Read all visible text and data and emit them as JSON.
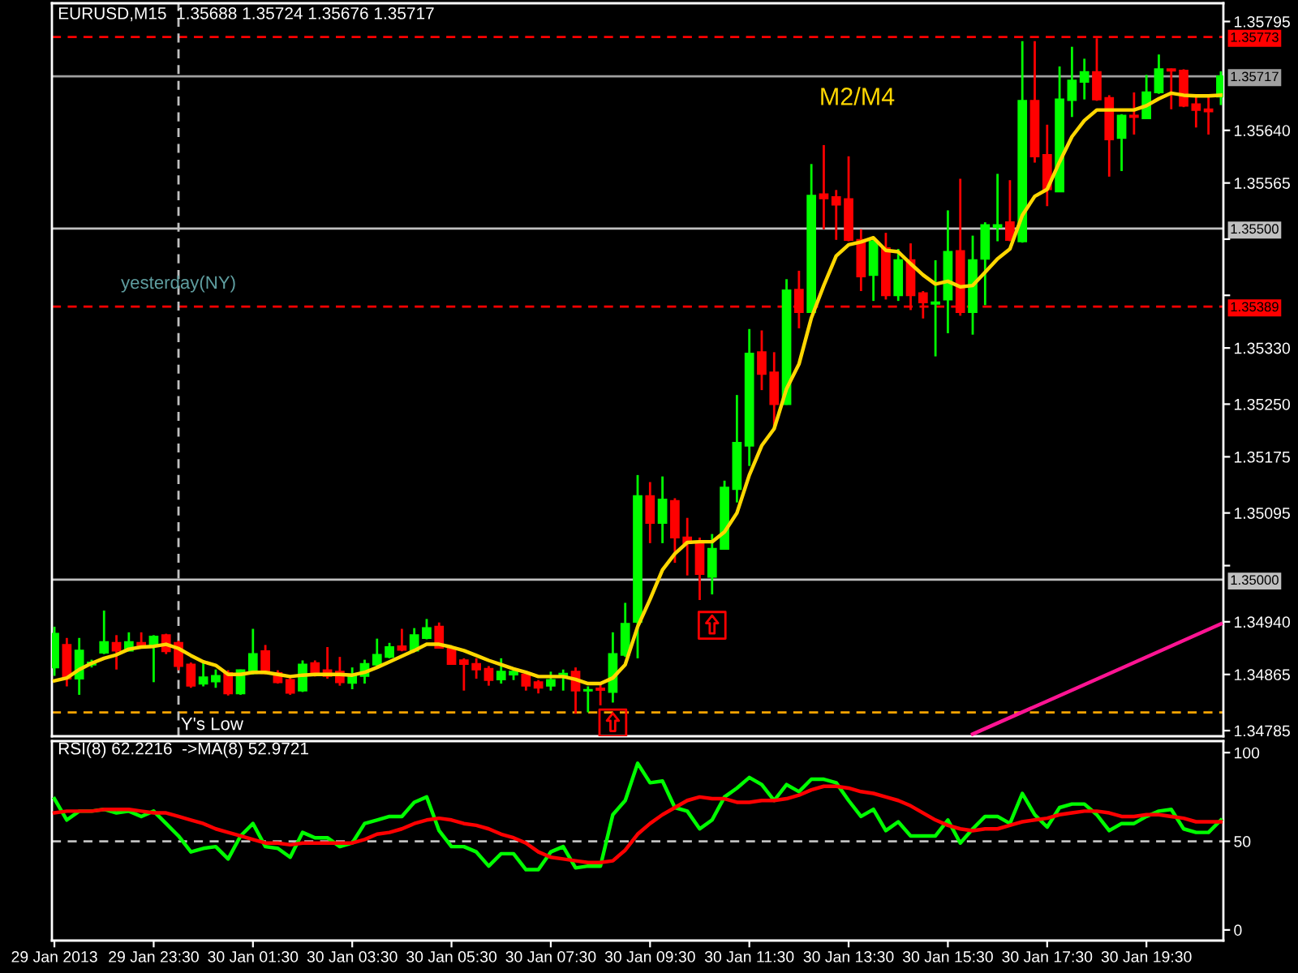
{
  "chart_data": [
    {
      "type": "candlestick",
      "title": "EURUSD,M15  1.35688 1.35724 1.35676 1.35717",
      "x": [
        "2013-01-29T21:30",
        "2013-01-29T21:45",
        "2013-01-29T22:00",
        "2013-01-29T22:15",
        "2013-01-29T22:30",
        "2013-01-29T22:45",
        "2013-01-29T23:00",
        "2013-01-29T23:15",
        "2013-01-29T23:30",
        "2013-01-29T23:45",
        "2013-01-30T00:00",
        "2013-01-30T00:15",
        "2013-01-30T00:30",
        "2013-01-30T00:45",
        "2013-01-30T01:00",
        "2013-01-30T01:15",
        "2013-01-30T01:30",
        "2013-01-30T01:45",
        "2013-01-30T02:00",
        "2013-01-30T02:15",
        "2013-01-30T02:30",
        "2013-01-30T02:45",
        "2013-01-30T03:00",
        "2013-01-30T03:15",
        "2013-01-30T03:30",
        "2013-01-30T03:45",
        "2013-01-30T04:00",
        "2013-01-30T04:15",
        "2013-01-30T04:30",
        "2013-01-30T04:45",
        "2013-01-30T05:00",
        "2013-01-30T05:15",
        "2013-01-30T05:30",
        "2013-01-30T05:45",
        "2013-01-30T06:00",
        "2013-01-30T06:15",
        "2013-01-30T06:30",
        "2013-01-30T06:45",
        "2013-01-30T07:00",
        "2013-01-30T07:15",
        "2013-01-30T07:30",
        "2013-01-30T07:45",
        "2013-01-30T08:00",
        "2013-01-30T08:15",
        "2013-01-30T08:30",
        "2013-01-30T08:45",
        "2013-01-30T09:00",
        "2013-01-30T09:15",
        "2013-01-30T09:30",
        "2013-01-30T09:45",
        "2013-01-30T10:00",
        "2013-01-30T10:15",
        "2013-01-30T10:30",
        "2013-01-30T10:45",
        "2013-01-30T11:00",
        "2013-01-30T11:15",
        "2013-01-30T11:30",
        "2013-01-30T11:45",
        "2013-01-30T12:00",
        "2013-01-30T12:15",
        "2013-01-30T12:30",
        "2013-01-30T12:45",
        "2013-01-30T13:00",
        "2013-01-30T13:15",
        "2013-01-30T13:30",
        "2013-01-30T13:45",
        "2013-01-30T14:00",
        "2013-01-30T14:15",
        "2013-01-30T14:30",
        "2013-01-30T14:45",
        "2013-01-30T15:00",
        "2013-01-30T15:15",
        "2013-01-30T15:30",
        "2013-01-30T15:45",
        "2013-01-30T16:00",
        "2013-01-30T16:15",
        "2013-01-30T16:30",
        "2013-01-30T16:45",
        "2013-01-30T17:00",
        "2013-01-30T17:15",
        "2013-01-30T17:30",
        "2013-01-30T17:45",
        "2013-01-30T18:00",
        "2013-01-30T18:15",
        "2013-01-30T18:30",
        "2013-01-30T18:45",
        "2013-01-30T19:00",
        "2013-01-30T19:15",
        "2013-01-30T19:30",
        "2013-01-30T19:45",
        "2013-01-30T20:00",
        "2013-01-30T20:15",
        "2013-01-30T20:30",
        "2013-01-30T20:45",
        "2013-01-30T21:00"
      ],
      "ohlc": [
        [
          1.34875,
          1.34933,
          1.34863,
          1.34923
        ],
        [
          1.34907,
          1.34917,
          1.34848,
          1.34859
        ],
        [
          1.34859,
          1.34917,
          1.34836,
          1.34899
        ],
        [
          1.34879,
          1.34886,
          1.34875,
          1.34882
        ],
        [
          1.34896,
          1.34956,
          1.34894,
          1.34911
        ],
        [
          1.3491,
          1.34921,
          1.34872,
          1.34899
        ],
        [
          1.34899,
          1.34925,
          1.34898,
          1.34911
        ],
        [
          1.3491,
          1.34925,
          1.34902,
          1.34904
        ],
        [
          1.34906,
          1.34921,
          1.34854,
          1.34919
        ],
        [
          1.34921,
          1.34923,
          1.34894,
          1.34898
        ],
        [
          1.3491,
          1.34913,
          1.34871,
          1.34877
        ],
        [
          1.34879,
          1.34882,
          1.34846,
          1.34849
        ],
        [
          1.34852,
          1.34882,
          1.34848,
          1.34861
        ],
        [
          1.34855,
          1.34872,
          1.34846,
          1.34863
        ],
        [
          1.34867,
          1.34871,
          1.34835,
          1.34838
        ],
        [
          1.34838,
          1.34872,
          1.34836,
          1.34871
        ],
        [
          1.34867,
          1.3493,
          1.34865,
          1.34894
        ],
        [
          1.34898,
          1.34907,
          1.34865,
          1.34867
        ],
        [
          1.34867,
          1.34871,
          1.34852,
          1.34854
        ],
        [
          1.34857,
          1.34863,
          1.34836,
          1.34839
        ],
        [
          1.34842,
          1.34885,
          1.3484,
          1.34879
        ],
        [
          1.34881,
          1.34885,
          1.34862,
          1.34866
        ],
        [
          1.34871,
          1.34904,
          1.34859,
          1.34863
        ],
        [
          1.34869,
          1.3489,
          1.34849,
          1.34854
        ],
        [
          1.34853,
          1.34875,
          1.34844,
          1.34865
        ],
        [
          1.34863,
          1.34886,
          1.34852,
          1.3488
        ],
        [
          1.34879,
          1.34916,
          1.34875,
          1.34893
        ],
        [
          1.3489,
          1.3491,
          1.34888,
          1.34904
        ],
        [
          1.34905,
          1.3493,
          1.34898,
          1.349
        ],
        [
          1.34899,
          1.34931,
          1.34898,
          1.34921
        ],
        [
          1.34917,
          1.34944,
          1.34915,
          1.34931
        ],
        [
          1.34933,
          1.34939,
          1.34902,
          1.34903
        ],
        [
          1.34902,
          1.34906,
          1.34879,
          1.3488
        ],
        [
          1.34885,
          1.34888,
          1.34842,
          1.3488
        ],
        [
          1.3488,
          1.34888,
          1.34859,
          1.34872
        ],
        [
          1.34873,
          1.34877,
          1.34849,
          1.34857
        ],
        [
          1.34858,
          1.34888,
          1.34852,
          1.34869
        ],
        [
          1.34865,
          1.34873,
          1.34857,
          1.34869
        ],
        [
          1.34865,
          1.34869,
          1.34842,
          1.34849
        ],
        [
          1.34854,
          1.34857,
          1.34838,
          1.34846
        ],
        [
          1.34849,
          1.34869,
          1.34842,
          1.34857
        ],
        [
          1.34862,
          1.34872,
          1.34842,
          1.34866
        ],
        [
          1.34869,
          1.34875,
          1.34809,
          1.34842
        ],
        [
          1.34842,
          1.34848,
          1.34811,
          1.34843
        ],
        [
          1.34845,
          1.34852,
          1.34821,
          1.34843
        ],
        [
          1.3484,
          1.34925,
          1.34825,
          1.34894
        ],
        [
          1.34893,
          1.34967,
          1.3489,
          1.34937
        ],
        [
          1.3494,
          1.35149,
          1.34888,
          1.35119
        ],
        [
          1.35119,
          1.35139,
          1.35052,
          1.35081
        ],
        [
          1.35081,
          1.35147,
          1.35052,
          1.35114
        ],
        [
          1.35112,
          1.35116,
          1.35024,
          1.3506
        ],
        [
          1.3506,
          1.35088,
          1.35006,
          1.35052
        ],
        [
          1.35052,
          1.3506,
          1.34971,
          1.35008
        ],
        [
          1.35004,
          1.35065,
          1.34979,
          1.35044
        ],
        [
          1.35044,
          1.35141,
          1.35043,
          1.35131
        ],
        [
          1.35129,
          1.35263,
          1.3511,
          1.35195
        ],
        [
          1.35191,
          1.35357,
          1.35162,
          1.35322
        ],
        [
          1.35324,
          1.35355,
          1.3527,
          1.35293
        ],
        [
          1.35295,
          1.35324,
          1.35219,
          1.3525
        ],
        [
          1.3525,
          1.35428,
          1.35249,
          1.35412
        ],
        [
          1.35413,
          1.3544,
          1.35358,
          1.35381
        ],
        [
          1.35381,
          1.35592,
          1.3538,
          1.35547
        ],
        [
          1.35549,
          1.35619,
          1.35499,
          1.35543
        ],
        [
          1.35545,
          1.35555,
          1.35484,
          1.35534
        ],
        [
          1.35542,
          1.35603,
          1.35482,
          1.35484
        ],
        [
          1.35484,
          1.35499,
          1.35411,
          1.35432
        ],
        [
          1.35434,
          1.35488,
          1.35397,
          1.35482
        ],
        [
          1.35472,
          1.35494,
          1.35399,
          1.35405
        ],
        [
          1.35405,
          1.35471,
          1.35397,
          1.35455
        ],
        [
          1.35455,
          1.35479,
          1.35384,
          1.35405
        ],
        [
          1.35408,
          1.35411,
          1.35372,
          1.35395
        ],
        [
          1.35393,
          1.35455,
          1.35318,
          1.35395
        ],
        [
          1.35399,
          1.35526,
          1.35351,
          1.35467
        ],
        [
          1.35468,
          1.35571,
          1.35376,
          1.35381
        ],
        [
          1.35381,
          1.3549,
          1.35349,
          1.35455
        ],
        [
          1.35457,
          1.35509,
          1.35391,
          1.35505
        ],
        [
          1.35502,
          1.35578,
          1.35482,
          1.35505
        ],
        [
          1.35509,
          1.35569,
          1.35482,
          1.35484
        ],
        [
          1.35482,
          1.35767,
          1.3548,
          1.35682
        ],
        [
          1.35682,
          1.35767,
          1.35594,
          1.35603
        ],
        [
          1.35605,
          1.35648,
          1.35532,
          1.35556
        ],
        [
          1.35553,
          1.35731,
          1.35552,
          1.35684
        ],
        [
          1.35683,
          1.35759,
          1.35659,
          1.35711
        ],
        [
          1.35709,
          1.35742,
          1.35684,
          1.35723
        ],
        [
          1.35723,
          1.35771,
          1.35682,
          1.35684
        ],
        [
          1.35686,
          1.3569,
          1.35574,
          1.35627
        ],
        [
          1.35629,
          1.35663,
          1.35582,
          1.35661
        ],
        [
          1.35661,
          1.35694,
          1.35634,
          1.35659
        ],
        [
          1.35657,
          1.35719,
          1.35656,
          1.35694
        ],
        [
          1.35694,
          1.35748,
          1.35692,
          1.35727
        ],
        [
          1.35727,
          1.35728,
          1.3567,
          1.35725
        ],
        [
          1.35725,
          1.35727,
          1.35673,
          1.35675
        ],
        [
          1.35677,
          1.35688,
          1.35644,
          1.35669
        ],
        [
          1.3567,
          1.3569,
          1.35634,
          1.35667
        ],
        [
          1.35688,
          1.35724,
          1.35676,
          1.35717
        ]
      ],
      "colors": [
        "#00ff00",
        "#ff0000",
        "#00ff00",
        "#00ff00",
        "#00ff00",
        "#ff0000",
        "#00ff00",
        "#ff0000",
        "#00ff00",
        "#ff0000",
        "#ff0000",
        "#ff0000",
        "#00ff00",
        "#00ff00",
        "#ff0000",
        "#00ff00",
        "#00ff00",
        "#ff0000",
        "#ff0000",
        "#ff0000",
        "#00ff00",
        "#ff0000",
        "#ff0000",
        "#ff0000",
        "#00ff00",
        "#00ff00",
        "#00ff00",
        "#00ff00",
        "#ff0000",
        "#00ff00",
        "#00ff00",
        "#ff0000",
        "#ff0000",
        "#ff0000",
        "#ff0000",
        "#ff0000",
        "#00ff00",
        "#00ff00",
        "#ff0000",
        "#ff0000",
        "#00ff00",
        "#00ff00",
        "#ff0000",
        "#00ff00",
        "#ff0000",
        "#00ff00",
        "#00ff00",
        "#00ff00",
        "#ff0000",
        "#00ff00",
        "#ff0000",
        "#ff0000",
        "#ff0000",
        "#00ff00",
        "#00ff00",
        "#00ff00",
        "#00ff00",
        "#ff0000",
        "#ff0000",
        "#00ff00",
        "#ff0000",
        "#00ff00",
        "#ff0000",
        "#ff0000",
        "#ff0000",
        "#ff0000",
        "#00ff00",
        "#ff0000",
        "#00ff00",
        "#ff0000",
        "#ff0000",
        "#00ff00",
        "#00ff00",
        "#ff0000",
        "#00ff00",
        "#00ff00",
        "#00ff00",
        "#ff0000",
        "#00ff00",
        "#ff0000",
        "#ff0000",
        "#00ff00",
        "#00ff00",
        "#00ff00",
        "#ff0000",
        "#ff0000",
        "#00ff00",
        "#ff0000",
        "#00ff00",
        "#00ff00",
        "#ff0000",
        "#ff0000",
        "#ff0000",
        "#ff0000",
        "#00ff00"
      ],
      "series": [
        {
          "type": "line",
          "name": "M2/M4",
          "color": "#ffd700",
          "values": [
            1.34856,
            1.3486,
            1.34872,
            1.34881,
            1.34888,
            1.34893,
            1.34901,
            1.34904,
            1.34905,
            1.34908,
            1.34902,
            1.34892,
            1.34883,
            1.34878,
            1.34865,
            1.34865,
            1.34868,
            1.34868,
            1.34865,
            1.34862,
            1.34864,
            1.34865,
            1.34865,
            1.34865,
            1.34864,
            1.34868,
            1.34875,
            1.34883,
            1.34891,
            1.34899,
            1.34908,
            1.34908,
            1.34904,
            1.34899,
            1.34892,
            1.34885,
            1.34879,
            1.34873,
            1.34868,
            1.34862,
            1.34862,
            1.34862,
            1.34858,
            1.34852,
            1.34852,
            1.3486,
            1.34879,
            1.34933,
            1.34972,
            1.35014,
            1.35037,
            1.35053,
            1.35054,
            1.35054,
            1.35068,
            1.35095,
            1.35149,
            1.35191,
            1.35215,
            1.35272,
            1.35307,
            1.35373,
            1.35419,
            1.35461,
            1.35477,
            1.35481,
            1.35487,
            1.35469,
            1.35467,
            1.3545,
            1.35434,
            1.35421,
            1.35425,
            1.35417,
            1.35419,
            1.35438,
            1.35457,
            1.35471,
            1.35519,
            1.35546,
            1.35556,
            1.35595,
            1.35631,
            1.35654,
            1.35669,
            1.35669,
            1.35669,
            1.35669,
            1.35675,
            1.35685,
            1.35693,
            1.3569,
            1.35689,
            1.35689,
            1.3569
          ]
        },
        {
          "type": "line",
          "color": "#ff1493",
          "x": [
            "2013-01-30T16:00",
            "2013-01-30T17:30",
            "2013-01-30T19:00",
            "2013-01-30T21:00"
          ],
          "values": [
            1.3478,
            1.34827,
            1.34874,
            1.34937
          ]
        },
        {
          "type": "scatter",
          "color": "#ff0000",
          "marker": "square",
          "x": [
            "2013-01-30T08:45",
            "2013-01-30T10:45"
          ],
          "values": [
            1.34796,
            1.34935
          ]
        }
      ],
      "xlim": [
        "2013-01-29T21:27",
        "2013-01-30T21:03"
      ],
      "ylim": [
        1.34777,
        1.35821
      ],
      "yticks": [
        1.35795,
        {
          "value": 1.3564,
          "label": "1.35640"
        },
        1.35565,
        {
          "value": 1.35485,
          "label": null
        },
        {
          "value": 1.35405,
          "label": null
        },
        {
          "value": 1.3533,
          "label": "1.35330"
        },
        {
          "value": 1.3525,
          "label": "1.35250"
        },
        1.35175,
        1.35095,
        {
          "value": 1.3502,
          "label": null
        },
        {
          "value": 1.3494,
          "label": "1.34940"
        },
        1.34865,
        1.34785
      ],
      "tick_labels": "y",
      "ref_lines": [
        {
          "axis": "y",
          "value": 1.35773,
          "label": "1.35773",
          "color": "#ff0000",
          "line_style": "dashed"
        },
        {
          "axis": "y",
          "value": 1.35717,
          "label": "1.35717",
          "color": "#a0a0a0",
          "line_style": "solid"
        },
        {
          "axis": "y",
          "value": 1.355,
          "label": "1.35500",
          "color": "#c0c0c0",
          "line_style": "solid"
        },
        {
          "axis": "y",
          "value": 1.35389,
          "label": "1.35389",
          "color": "#ff0000",
          "line_style": "dashed"
        },
        {
          "axis": "y",
          "value": 1.35,
          "label": "1.35000",
          "color": "#c0c0c0",
          "line_style": "solid"
        },
        {
          "axis": "y",
          "value": 1.34811,
          "color": "#ffa500",
          "line_style": "dashed"
        },
        {
          "axis": "x",
          "value": "2013-01-30T00:00",
          "label": "yesterday(NY)",
          "color": "#c0c0c0",
          "line_style": "dashed"
        }
      ],
      "annotations": [
        {
          "text": "Y's Low",
          "x": "2013-01-30T00:00",
          "y": 1.34811
        }
      ]
    },
    {
      "type": "line",
      "title": "RSI(8) 62.2216  ->MA(8) 52.9721",
      "x": [
        "2013-01-29T21:30",
        "2013-01-29T21:45",
        "2013-01-29T22:00",
        "2013-01-29T22:15",
        "2013-01-29T22:30",
        "2013-01-29T22:45",
        "2013-01-29T23:00",
        "2013-01-29T23:15",
        "2013-01-29T23:30",
        "2013-01-29T23:45",
        "2013-01-30T00:00",
        "2013-01-30T00:15",
        "2013-01-30T00:30",
        "2013-01-30T00:45",
        "2013-01-30T01:00",
        "2013-01-30T01:15",
        "2013-01-30T01:30",
        "2013-01-30T01:45",
        "2013-01-30T02:00",
        "2013-01-30T02:15",
        "2013-01-30T02:30",
        "2013-01-30T02:45",
        "2013-01-30T03:00",
        "2013-01-30T03:15",
        "2013-01-30T03:30",
        "2013-01-30T03:45",
        "2013-01-30T04:00",
        "2013-01-30T04:15",
        "2013-01-30T04:30",
        "2013-01-30T04:45",
        "2013-01-30T05:00",
        "2013-01-30T05:15",
        "2013-01-30T05:30",
        "2013-01-30T05:45",
        "2013-01-30T06:00",
        "2013-01-30T06:15",
        "2013-01-30T06:30",
        "2013-01-30T06:45",
        "2013-01-30T07:00",
        "2013-01-30T07:15",
        "2013-01-30T07:30",
        "2013-01-30T07:45",
        "2013-01-30T08:00",
        "2013-01-30T08:15",
        "2013-01-30T08:30",
        "2013-01-30T08:45",
        "2013-01-30T09:00",
        "2013-01-30T09:15",
        "2013-01-30T09:30",
        "2013-01-30T09:45",
        "2013-01-30T10:00",
        "2013-01-30T10:15",
        "2013-01-30T10:30",
        "2013-01-30T10:45",
        "2013-01-30T11:00",
        "2013-01-30T11:15",
        "2013-01-30T11:30",
        "2013-01-30T11:45",
        "2013-01-30T12:00",
        "2013-01-30T12:15",
        "2013-01-30T12:30",
        "2013-01-30T12:45",
        "2013-01-30T13:00",
        "2013-01-30T13:15",
        "2013-01-30T13:30",
        "2013-01-30T13:45",
        "2013-01-30T14:00",
        "2013-01-30T14:15",
        "2013-01-30T14:30",
        "2013-01-30T14:45",
        "2013-01-30T15:00",
        "2013-01-30T15:15",
        "2013-01-30T15:30",
        "2013-01-30T15:45",
        "2013-01-30T16:00",
        "2013-01-30T16:15",
        "2013-01-30T16:30",
        "2013-01-30T16:45",
        "2013-01-30T17:00",
        "2013-01-30T17:15",
        "2013-01-30T17:30",
        "2013-01-30T17:45",
        "2013-01-30T18:00",
        "2013-01-30T18:15",
        "2013-01-30T18:30",
        "2013-01-30T18:45",
        "2013-01-30T19:00",
        "2013-01-30T19:15",
        "2013-01-30T19:30",
        "2013-01-30T19:45",
        "2013-01-30T20:00",
        "2013-01-30T20:15",
        "2013-01-30T20:30",
        "2013-01-30T20:45",
        "2013-01-30T21:00"
      ],
      "series": [
        {
          "color": "#00ff00",
          "values": [
            74,
            62,
            67,
            67,
            68,
            66,
            67,
            64,
            67,
            60,
            53,
            44,
            46,
            47,
            40,
            53,
            60,
            47,
            46,
            41,
            55,
            52,
            52,
            47,
            49,
            60,
            62,
            64,
            64,
            72,
            75,
            56,
            47,
            47,
            44,
            36,
            43,
            43,
            34,
            34,
            44,
            47,
            35,
            36,
            36,
            65,
            73,
            94,
            83,
            84,
            69,
            67,
            57,
            62,
            75,
            80,
            86,
            82,
            73,
            82,
            78,
            85,
            85,
            83,
            73,
            64,
            68,
            56,
            61,
            53,
            53,
            53,
            62,
            49,
            57,
            64,
            64,
            60,
            77,
            65,
            58,
            69,
            71,
            71,
            65,
            56,
            60,
            60,
            64,
            67,
            68,
            57,
            55,
            55,
            62
          ]
        },
        {
          "color": "#ff0000",
          "values": [
            66,
            67,
            67,
            67,
            68,
            68,
            68,
            67,
            66,
            66,
            64,
            62,
            60,
            57,
            55,
            53,
            51,
            49,
            49,
            48,
            49,
            49,
            49,
            49,
            49,
            51,
            54,
            55,
            57,
            60,
            62,
            63,
            62,
            60,
            59,
            57,
            54,
            52,
            49,
            44,
            41,
            40,
            39,
            38,
            38,
            39,
            45,
            54,
            60,
            65,
            69,
            73,
            75,
            74,
            74,
            72,
            72,
            73,
            73,
            74,
            76,
            79,
            81,
            81,
            80,
            78,
            77,
            75,
            73,
            70,
            66,
            62,
            59,
            57,
            56,
            57,
            57,
            59,
            61,
            62,
            63,
            65,
            66,
            67,
            67,
            66,
            64,
            64,
            65,
            65,
            64,
            63,
            61,
            61,
            61
          ]
        }
      ],
      "xlim": [
        "2013-01-29T21:27",
        "2013-01-30T21:03"
      ],
      "xticks": [
        {
          "value": "2013-01-29T21:30",
          "label": "29 Jan 2013"
        },
        {
          "value": "2013-01-29T23:30",
          "label": "29 Jan 23:30"
        },
        {
          "value": "2013-01-30T01:30",
          "label": "30 Jan 01:30"
        },
        {
          "value": "2013-01-30T03:30",
          "label": "30 Jan 03:30"
        },
        {
          "value": "2013-01-30T05:30",
          "label": "30 Jan 05:30"
        },
        {
          "value": "2013-01-30T07:30",
          "label": "30 Jan 07:30"
        },
        {
          "value": "2013-01-30T09:30",
          "label": "30 Jan 09:30"
        },
        {
          "value": "2013-01-30T11:30",
          "label": "30 Jan 11:30"
        },
        {
          "value": "2013-01-30T13:30",
          "label": "30 Jan 13:30"
        },
        {
          "value": "2013-01-30T15:30",
          "label": "30 Jan 15:30"
        },
        {
          "value": "2013-01-30T17:30",
          "label": "30 Jan 17:30"
        },
        {
          "value": "2013-01-30T19:30",
          "label": "30 Jan 19:30"
        }
      ],
      "ylim": [
        -6,
        106.5
      ],
      "yticks": [
        0,
        50,
        100
      ],
      "ref_lines": [
        {
          "axis": "y",
          "value": 50,
          "color": "#c0c0c0",
          "line_style": "dashed"
        }
      ]
    }
  ]
}
